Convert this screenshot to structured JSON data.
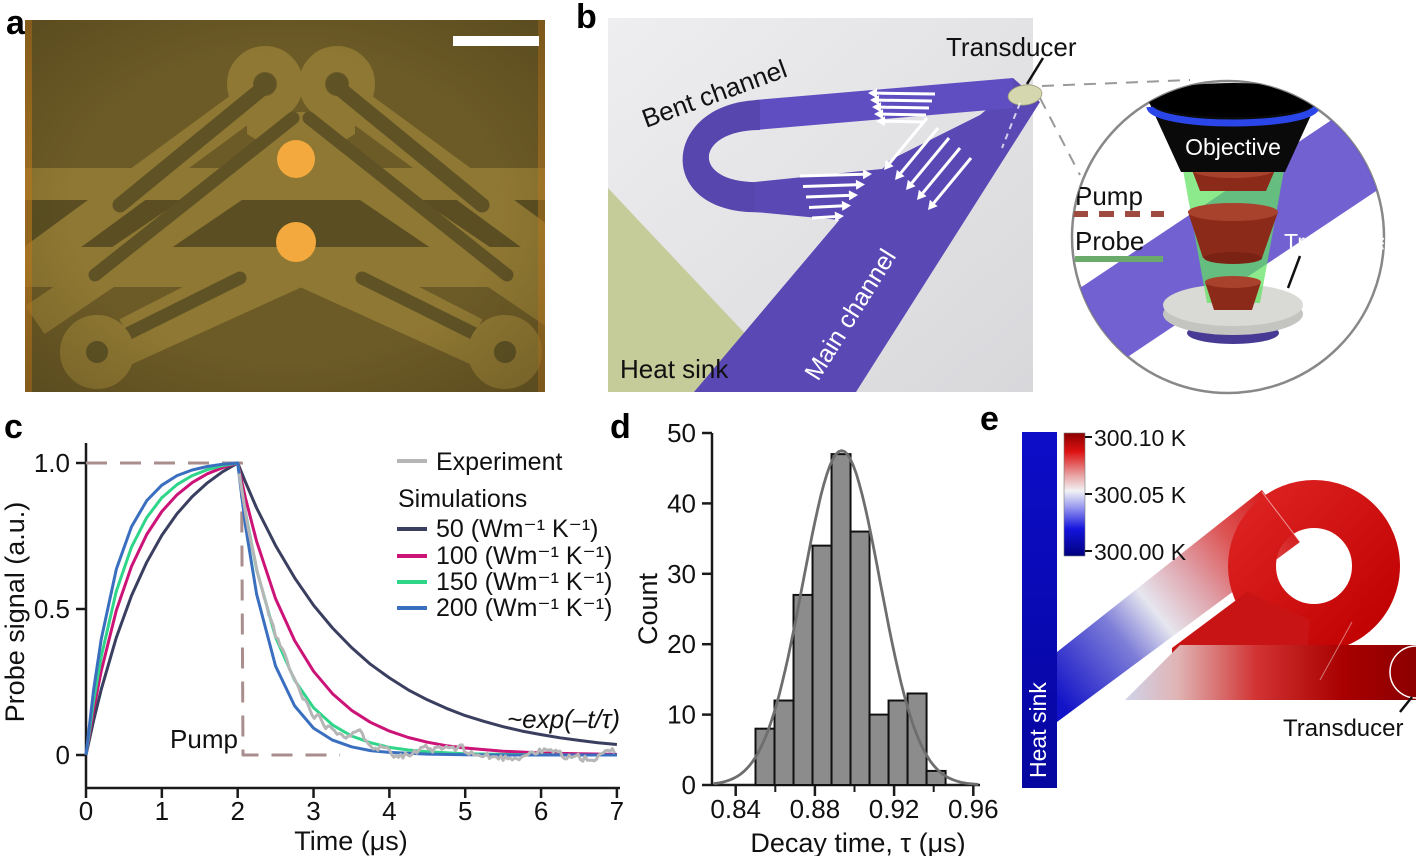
{
  "figure": {
    "background": "#ffffff"
  },
  "panels": {
    "a": {
      "label": "a",
      "colors": {
        "background": "#6c5b27",
        "channel": "#8f7833",
        "dark_etch": "#5a4e22",
        "slot": "#5f5326",
        "gold_dot": "#f3a93e",
        "scale_bar": "#ffffff",
        "edge_glow": "#c07c20"
      }
    },
    "b": {
      "label": "b",
      "labels": {
        "bent_channel": "Bent channel",
        "transducer": "Transducer",
        "main_channel": "Main channel",
        "heat_sink": "Heat sink"
      },
      "inset": {
        "objective": "Objective",
        "pump": "Pump",
        "probe": "Probe",
        "transducer": "Transducer"
      },
      "colors": {
        "channel_purple": "#5a49b5",
        "channel_purple_dark": "#5646ad",
        "heat_sink_olive": "#c6cb9a",
        "background_gray": "#e9e9ec",
        "transducer_pad": "#d5d8ae",
        "pump_dash": "#9e4a3e",
        "probe_line": "#6aaa6a",
        "objective_black": "#0a0a0a",
        "objective_ring_blue": "#2b46e8",
        "beam_green": "#5fe05f",
        "cone_red": "#8c2a1a",
        "cone_red_top": "#a8422c",
        "disc_gray": "#d9d9d5",
        "inset_band_purple": "#6a59cf",
        "arrow_white": "#ffffff"
      }
    },
    "c": {
      "label": "c"
    },
    "d": {
      "label": "d"
    },
    "e": {
      "label": "e",
      "labels": {
        "heat_sink": "Heat sink",
        "transducer": "Transducer"
      },
      "colorbar_ticks": [
        "300.10 K",
        "300.05 K",
        "300.00 K"
      ],
      "colors": {
        "cold_blue": "#0a0abe",
        "hot_red": "#cc0000",
        "heat_sink_text": "#ffffff"
      }
    }
  },
  "chart_data": [
    {
      "panel": "c",
      "type": "line",
      "xlabel": "Time (μs)",
      "ylabel": "Probe signal (a.u.)",
      "xlim": [
        0,
        7
      ],
      "ylim": [
        -0.15,
        1.12
      ],
      "xticks": [
        0,
        1,
        2,
        3,
        4,
        5,
        6,
        7
      ],
      "xtick_labels": [
        "0",
        "1",
        "2",
        "3",
        "4",
        "5",
        "6",
        "7"
      ],
      "yticks": [
        0,
        0.5,
        1.0
      ],
      "ytick_labels": [
        "0",
        "0.5",
        "1.0"
      ],
      "grid": false,
      "legend_position": "upper right",
      "legend": {
        "experiment_label": "Experiment",
        "simulations_header": "Simulations",
        "sim_labels": [
          "50 (Wm⁻¹ K⁻¹)",
          "100 (Wm⁻¹ K⁻¹)",
          "150 (Wm⁻¹ K⁻¹)",
          "200 (Wm⁻¹ K⁻¹)"
        ]
      },
      "annotations": [
        {
          "id": "pump-label",
          "text": "Pump"
        },
        {
          "id": "exp-decay-label",
          "text": "~exp(–t/τ)"
        }
      ],
      "series": [
        {
          "name": "Pump",
          "color": "#a98e8e",
          "dash": [
            21,
            13
          ],
          "width": 3,
          "points": [
            [
              0,
              1
            ],
            [
              2.05,
              1
            ],
            [
              2.07,
              0
            ],
            [
              3.35,
              0
            ]
          ]
        },
        {
          "name": "50 (Wm⁻¹ K⁻¹)",
          "color": "#3a3f60",
          "width": 3,
          "points": [
            [
              0,
              0
            ],
            [
              0.1,
              0.118
            ],
            [
              0.2,
              0.224
            ],
            [
              0.4,
              0.402
            ],
            [
              0.6,
              0.546
            ],
            [
              0.8,
              0.66
            ],
            [
              1,
              0.752
            ],
            [
              1.2,
              0.826
            ],
            [
              1.4,
              0.885
            ],
            [
              1.6,
              0.932
            ],
            [
              1.8,
              0.97
            ],
            [
              2,
              1
            ],
            [
              2.1,
              0.936
            ],
            [
              2.25,
              0.846
            ],
            [
              2.5,
              0.717
            ],
            [
              2.75,
              0.607
            ],
            [
              3,
              0.513
            ],
            [
              3.25,
              0.435
            ],
            [
              3.5,
              0.368
            ],
            [
              3.75,
              0.311
            ],
            [
              4,
              0.264
            ],
            [
              4.25,
              0.223
            ],
            [
              4.5,
              0.189
            ],
            [
              4.75,
              0.16
            ],
            [
              5,
              0.135
            ],
            [
              5.25,
              0.115
            ],
            [
              5.5,
              0.097
            ],
            [
              5.75,
              0.082
            ],
            [
              6,
              0.07
            ],
            [
              6.25,
              0.059
            ],
            [
              6.5,
              0.05
            ],
            [
              6.75,
              0.042
            ],
            [
              7,
              0.036
            ]
          ]
        },
        {
          "name": "100 (Wm⁻¹ K⁻¹)",
          "color": "#cc1377",
          "width": 3,
          "points": [
            [
              0,
              0
            ],
            [
              0.1,
              0.155
            ],
            [
              0.2,
              0.287
            ],
            [
              0.4,
              0.495
            ],
            [
              0.6,
              0.646
            ],
            [
              0.8,
              0.755
            ],
            [
              1,
              0.834
            ],
            [
              1.2,
              0.891
            ],
            [
              1.4,
              0.933
            ],
            [
              1.6,
              0.963
            ],
            [
              1.8,
              0.984
            ],
            [
              2,
              1
            ],
            [
              2.1,
              0.882
            ],
            [
              2.25,
              0.732
            ],
            [
              2.5,
              0.535
            ],
            [
              2.75,
              0.392
            ],
            [
              3,
              0.287
            ],
            [
              3.25,
              0.21
            ],
            [
              3.5,
              0.153
            ],
            [
              3.75,
              0.112
            ],
            [
              4,
              0.082
            ],
            [
              4.25,
              0.06
            ],
            [
              4.5,
              0.044
            ],
            [
              4.75,
              0.032
            ],
            [
              5,
              0.024
            ],
            [
              5.5,
              0.013
            ],
            [
              6,
              0.007
            ],
            [
              6.5,
              0.004
            ],
            [
              7,
              0.002
            ]
          ]
        },
        {
          "name": "150 (Wm⁻¹ K⁻¹)",
          "color": "#2fd68a",
          "width": 3,
          "points": [
            [
              0,
              0
            ],
            [
              0.1,
              0.185
            ],
            [
              0.2,
              0.336
            ],
            [
              0.4,
              0.561
            ],
            [
              0.6,
              0.712
            ],
            [
              0.8,
              0.813
            ],
            [
              1,
              0.881
            ],
            [
              1.2,
              0.926
            ],
            [
              1.4,
              0.957
            ],
            [
              1.6,
              0.977
            ],
            [
              1.8,
              0.991
            ],
            [
              2,
              1
            ],
            [
              2.1,
              0.834
            ],
            [
              2.25,
              0.635
            ],
            [
              2.5,
              0.403
            ],
            [
              2.75,
              0.256
            ],
            [
              3,
              0.162
            ],
            [
              3.25,
              0.103
            ],
            [
              3.5,
              0.065
            ],
            [
              3.75,
              0.042
            ],
            [
              4,
              0.026
            ],
            [
              4.25,
              0.017
            ],
            [
              4.5,
              0.011
            ],
            [
              5,
              0.004
            ],
            [
              5.5,
              0.002
            ],
            [
              6,
              0.001
            ],
            [
              6.5,
              0
            ],
            [
              7,
              0
            ]
          ]
        },
        {
          "name": "200 (Wm⁻¹ K⁻¹)",
          "color": "#3a6fc0",
          "width": 3,
          "points": [
            [
              0,
              0
            ],
            [
              0.1,
              0.223
            ],
            [
              0.2,
              0.396
            ],
            [
              0.4,
              0.636
            ],
            [
              0.6,
              0.782
            ],
            [
              0.8,
              0.871
            ],
            [
              1,
              0.924
            ],
            [
              1.2,
              0.957
            ],
            [
              1.4,
              0.976
            ],
            [
              1.6,
              0.988
            ],
            [
              1.8,
              0.996
            ],
            [
              2,
              1
            ],
            [
              2.1,
              0.788
            ],
            [
              2.25,
              0.551
            ],
            [
              2.5,
              0.304
            ],
            [
              2.75,
              0.168
            ],
            [
              3,
              0.092
            ],
            [
              3.25,
              0.051
            ],
            [
              3.5,
              0.028
            ],
            [
              3.75,
              0.015
            ],
            [
              4,
              0.009
            ],
            [
              4.5,
              0.003
            ],
            [
              5,
              0.001
            ],
            [
              5.5,
              0
            ],
            [
              6,
              0
            ],
            [
              6.5,
              0
            ],
            [
              7,
              0
            ]
          ]
        },
        {
          "name": "Experiment",
          "color": "#b6b6b6",
          "width": 3,
          "generate": {
            "from": 2.02,
            "to": 7,
            "dt": 0.03,
            "tau": 0.55,
            "t0": 2,
            "noise": 0.075,
            "wander": 0.012,
            "seed": 11
          }
        }
      ]
    },
    {
      "panel": "d",
      "type": "histogram",
      "xlabel": "Decay time, τ (μs)",
      "ylabel": "Count",
      "xlim": [
        0.828,
        0.9635
      ],
      "ylim": [
        0,
        50
      ],
      "xticks": [
        0.84,
        0.88,
        0.92,
        0.96
      ],
      "xtick_labels": [
        "0.84",
        "0.88",
        "0.92",
        "0.96"
      ],
      "xticks_minor": [
        0.86,
        0.9,
        0.94
      ],
      "yticks": [
        0,
        10,
        20,
        30,
        40,
        50
      ],
      "ytick_labels": [
        "0",
        "10",
        "20",
        "30",
        "40",
        "50"
      ],
      "bins": {
        "start": 0.85,
        "width": 0.0096,
        "counts": [
          8,
          12,
          27,
          34,
          47,
          36,
          10,
          12,
          13,
          2
        ]
      },
      "fit": {
        "type": "gaussian",
        "amplitude": 47.5,
        "mean": 0.8935,
        "sigma": 0.0195,
        "color": "#6e6e6e"
      },
      "bar": {
        "fill": "#8c8c8c",
        "stroke": "#111111"
      }
    },
    {
      "panel": "e",
      "type": "heatmap",
      "title": "",
      "colorbar": {
        "tick_labels": [
          "300.10 K",
          "300.05 K",
          "300.00 K"
        ],
        "max_kelvin": 300.1,
        "mid_kelvin": 300.05,
        "min_kelvin": 300.0,
        "gradient_top_to_bottom": [
          "#8b0000",
          "#dd1111",
          "#e8a0a0",
          "#f2f2f5",
          "#9b9bf0",
          "#1414dd",
          "#00007e"
        ]
      },
      "regions": {
        "heat_sink": "cold (300.00 K)",
        "bent_channel_loop": "hot (~300.10 K)",
        "transducer_end": "hottest (300.10 K)"
      }
    }
  ]
}
